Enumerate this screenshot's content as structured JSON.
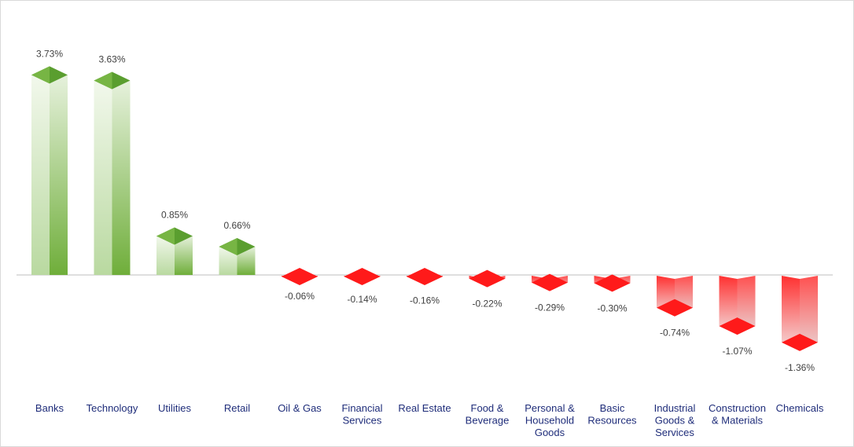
{
  "chart_data": {
    "type": "bar",
    "categories": [
      [
        "Banks"
      ],
      [
        "Technology"
      ],
      [
        "Utilities"
      ],
      [
        "Retail"
      ],
      [
        "Oil & Gas"
      ],
      [
        "Financial",
        "Services"
      ],
      [
        "Real Estate"
      ],
      [
        "Food &",
        "Beverage"
      ],
      [
        "Personal &",
        "Household",
        "Goods"
      ],
      [
        "Basic",
        "Resources"
      ],
      [
        "Industrial",
        "Goods &",
        "Services"
      ],
      [
        "Construction",
        "& Materials"
      ],
      [
        "Chemicals"
      ]
    ],
    "values": [
      3.73,
      3.63,
      0.85,
      0.66,
      -0.06,
      -0.14,
      -0.16,
      -0.22,
      -0.29,
      -0.3,
      -0.74,
      -1.07,
      -1.36
    ],
    "labels": [
      "3.73%",
      "3.63%",
      "0.85%",
      "0.66%",
      "-0.06%",
      "-0.14%",
      "-0.16%",
      "-0.22%",
      "-0.29%",
      "-0.30%",
      "-0.74%",
      "-1.07%",
      "-1.36%"
    ],
    "ylim": [
      -1.36,
      3.73
    ],
    "grid": false,
    "legend": "none",
    "colors": {
      "positive_top": "#5a9e2f",
      "positive_side": "#6fae3a",
      "positive_light": "#f2f8ec",
      "negative_top": "#ff1a1a",
      "negative_side": "#ff3030",
      "negative_light": "#f3dede",
      "axis": "#bfbfbf"
    }
  }
}
